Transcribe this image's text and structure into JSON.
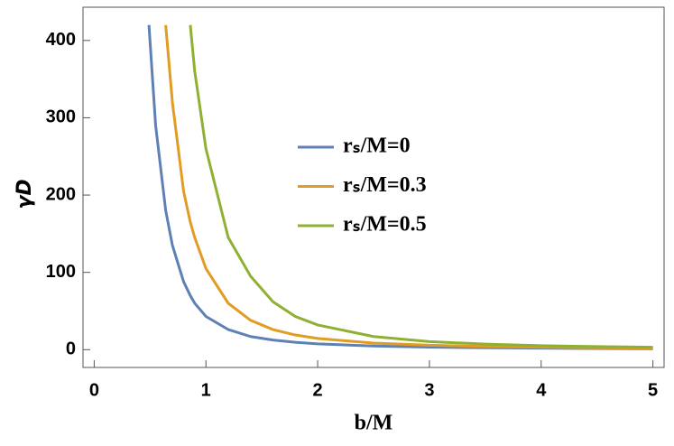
{
  "chart_data": {
    "type": "line",
    "x_label": "b/M",
    "y_label": "γD",
    "x": [
      0.49,
      0.55,
      0.64,
      0.7,
      0.8,
      0.86,
      0.9,
      1,
      1.2,
      1.4,
      1.6,
      1.8,
      2,
      2.5,
      3,
      3.5,
      4,
      4.5,
      5
    ],
    "series": [
      {
        "name": "rₛ/M=0",
        "color": "#5e81b5",
        "values": [
          420,
          290,
          180,
          135,
          88,
          70,
          60,
          43,
          26,
          17,
          12.5,
          9.5,
          7.5,
          4.8,
          3.3,
          2.5,
          1.9,
          1.5,
          1.2
        ]
      },
      {
        "name": "rₛ/M=0.3",
        "color": "#e19c24",
        "values": [
          null,
          null,
          420,
          320,
          205,
          165,
          145,
          105,
          60,
          38,
          26,
          19,
          14.5,
          8.5,
          5.7,
          4.1,
          3.1,
          2.4,
          2.0
        ]
      },
      {
        "name": "rₛ/M=0.5",
        "color": "#8fb032",
        "values": [
          null,
          null,
          null,
          null,
          null,
          420,
          360,
          260,
          145,
          95,
          62,
          43,
          32,
          17,
          10.5,
          7.2,
          5.2,
          4,
          3.2
        ]
      }
    ],
    "xlim": [
      -0.1,
      5.1
    ],
    "ylim": [
      -23,
      443
    ],
    "xticks": [
      0,
      1,
      2,
      3,
      4,
      5
    ],
    "yticks": [
      0,
      100,
      200,
      300,
      400
    ]
  }
}
